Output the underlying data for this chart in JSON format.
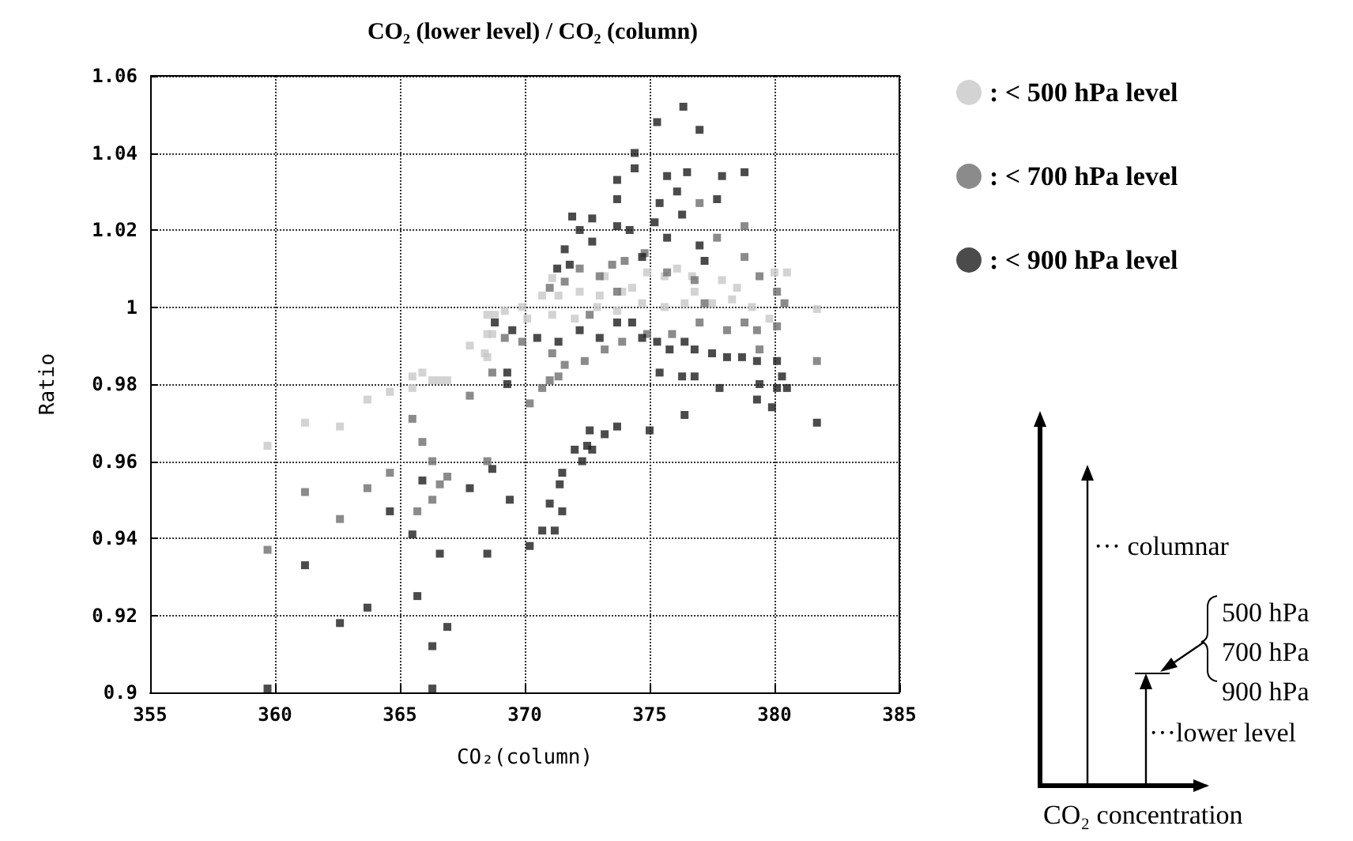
{
  "chart_data": {
    "type": "scatter",
    "title": "CO₂ (lower level) / CO₂ (column)",
    "xlabel": "CO₂(column)",
    "ylabel": "Ratio",
    "xlim": [
      355,
      385
    ],
    "xticks": [
      355,
      360,
      365,
      370,
      375,
      380,
      385
    ],
    "ylim": [
      0.9,
      1.06
    ],
    "yticks": [
      0.9,
      0.92,
      0.94,
      0.96,
      0.98,
      1,
      1.02,
      1.04,
      1.06
    ],
    "grid": true,
    "legend": "right",
    "marker": "square",
    "annotations": [
      "··· columnar",
      "500 hPa",
      "700 hPa",
      "900 hPa",
      "···lower level",
      "CO₂ concentration"
    ],
    "series": [
      {
        "name": ": < 500 hPa level",
        "color": "#c8c8c8",
        "x": [
          359.7,
          361.2,
          362.6,
          363.7,
          364.6,
          365.5,
          365.5,
          365.9,
          366.3,
          366.6,
          366.9,
          367.8,
          368.5,
          368.7,
          368.5,
          368.8,
          369.2,
          369.9,
          370.7,
          371.35,
          372.2,
          373.0,
          373.9,
          374.3,
          374.9,
          375.6,
          376.1,
          376.7,
          377.2,
          377.9,
          378.5,
          378.8,
          379.4,
          380.0,
          380.5,
          381.7,
          368.4,
          368.5,
          370.1,
          371.1,
          372.0,
          372.9,
          373.7,
          374.7,
          375.6,
          376.4,
          377.5,
          378.3,
          379.1,
          379.8,
          376.8,
          371.1,
          373.2
        ],
        "values": [
          0.964,
          0.97,
          0.969,
          0.976,
          0.978,
          0.979,
          0.982,
          0.983,
          0.981,
          0.981,
          0.981,
          0.99,
          0.987,
          0.993,
          0.998,
          0.998,
          0.999,
          1.0,
          1.003,
          1.003,
          1.004,
          1.003,
          1.004,
          1.005,
          1.009,
          1.008,
          1.01,
          1.008,
          null,
          1.007,
          1.005,
          null,
          null,
          1.009,
          1.009,
          0.9995,
          0.988,
          0.993,
          0.997,
          0.998,
          0.997,
          1.0,
          0.999,
          1.001,
          1.0,
          1.001,
          1.001,
          1.002,
          1.0,
          0.997,
          1.004,
          1.0075,
          1.008
        ]
      },
      {
        "name": ": < 700 hPa level",
        "color": "#6e6e6e",
        "x": [
          359.7,
          361.2,
          362.6,
          363.7,
          364.6,
          365.5,
          365.9,
          366.3,
          365.7,
          366.3,
          366.6,
          366.9,
          367.8,
          368.5,
          368.7,
          377.0,
          378.8,
          377.7,
          378.8,
          372.2,
          373.5,
          371.6,
          371.0,
          373.0,
          374.0,
          374.8,
          375.7,
          376.8,
          379.4,
          380.1,
          380.4,
          373.7,
          371.1,
          371.6,
          371.35,
          371.0,
          370.7,
          370.2,
          372.4,
          373.2,
          373.9,
          374.9,
          375.9,
          377.0,
          378.1,
          378.8,
          379.3,
          379.4,
          380.1,
          381.7,
          377.2,
          369.2,
          369.9,
          372.6
        ],
        "values": [
          0.937,
          0.952,
          0.945,
          0.953,
          0.957,
          0.971,
          0.965,
          0.96,
          0.947,
          0.95,
          0.954,
          0.956,
          0.977,
          0.96,
          0.983,
          1.027,
          1.021,
          1.018,
          1.013,
          1.01,
          1.011,
          1.0066,
          1.005,
          1.008,
          1.012,
          1.014,
          1.009,
          1.007,
          1.008,
          1.004,
          1.001,
          1.004,
          0.988,
          0.985,
          0.982,
          0.981,
          0.979,
          0.975,
          0.986,
          0.989,
          0.991,
          0.993,
          0.993,
          0.996,
          0.994,
          0.996,
          0.994,
          0.989,
          0.995,
          0.986,
          1.001,
          0.992,
          0.991,
          0.998
        ]
      },
      {
        "name": ": < 900 hPa level",
        "color": "#1e1e1e",
        "x": [
          359.7,
          361.2,
          362.6,
          363.7,
          364.6,
          365.5,
          365.7,
          365.9,
          366.3,
          366.3,
          366.6,
          366.9,
          367.8,
          368.5,
          368.7,
          376.35,
          375.3,
          377.0,
          374.4,
          374.4,
          373.7,
          375.7,
          376.5,
          377.9,
          378.8,
          377.7,
          373.7,
          376.1,
          375.4,
          371.9,
          372.7,
          372.2,
          371.6,
          371.8,
          371.3,
          372.7,
          373.7,
          374.2,
          374.7,
          375.2,
          375.7,
          376.3,
          377.0,
          377.2,
          368.8,
          369.5,
          370.5,
          371.35,
          372.2,
          373.0,
          373.7,
          374.3,
          374.7,
          375.3,
          375.8,
          376.4,
          376.8,
          377.5,
          378.1,
          378.7,
          379.3,
          380.1,
          375.4,
          376.3,
          376.8,
          377.8,
          379.4,
          380.3,
          380.1,
          380.5,
          379.3,
          379.9,
          381.7,
          376.4,
          369.3,
          369.3,
          375.0,
          373.7,
          373.2,
          372.6,
          372.5,
          372.7,
          372.0,
          372.3,
          371.5,
          371.4,
          371.0,
          371.5,
          370.7,
          371.2,
          370.2,
          369.4
        ],
        "values": [
          0.901,
          0.933,
          0.918,
          0.922,
          0.947,
          0.941,
          0.925,
          0.955,
          0.912,
          0.901,
          0.936,
          0.917,
          0.953,
          0.936,
          0.958,
          1.052,
          1.048,
          1.046,
          1.04,
          1.036,
          1.033,
          1.034,
          1.035,
          1.034,
          1.035,
          1.028,
          1.028,
          1.03,
          1.027,
          1.0235,
          1.023,
          1.02,
          1.015,
          1.011,
          1.01,
          1.017,
          1.021,
          1.02,
          1.013,
          1.022,
          1.018,
          1.024,
          1.016,
          1.012,
          0.996,
          0.994,
          0.992,
          0.991,
          0.994,
          0.992,
          0.996,
          0.996,
          0.992,
          0.991,
          0.989,
          0.991,
          0.989,
          0.988,
          0.987,
          0.987,
          0.986,
          0.986,
          0.983,
          0.982,
          0.982,
          0.979,
          0.98,
          0.982,
          0.979,
          0.979,
          0.976,
          0.974,
          0.97,
          0.972,
          0.983,
          0.98,
          0.968,
          0.969,
          0.967,
          0.968,
          0.964,
          0.963,
          0.963,
          0.96,
          0.957,
          0.954,
          0.949,
          0.947,
          0.942,
          0.942,
          0.938,
          0.95
        ]
      }
    ]
  }
}
